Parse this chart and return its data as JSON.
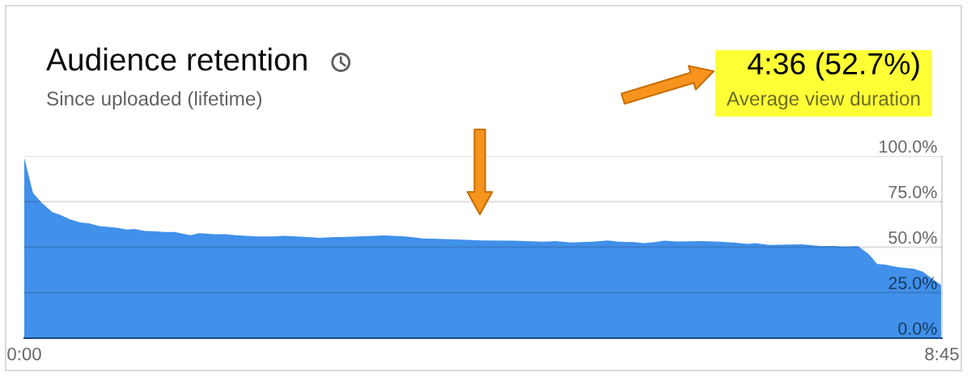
{
  "chart_data": {
    "type": "area",
    "title": "Audience retention",
    "subtitle": "Since uploaded (lifetime)",
    "annotations": [
      "4:36 (52.7%)",
      "Average view duration"
    ],
    "x": [
      0,
      5,
      10,
      16,
      21,
      26,
      32,
      37,
      43,
      53,
      59,
      63,
      69,
      74,
      80,
      86,
      95,
      100,
      109,
      115,
      121,
      133,
      142,
      149,
      160,
      169,
      175,
      185,
      206,
      218,
      228,
      245,
      262,
      280,
      297,
      304,
      313,
      325,
      334,
      340,
      349,
      354,
      360,
      366,
      374,
      387,
      398,
      407,
      414,
      418,
      426,
      445,
      456,
      463,
      469,
      477,
      483,
      488,
      493,
      500,
      509,
      514,
      519,
      525
    ],
    "values": [
      99,
      79.8,
      74.3,
      69.3,
      67.5,
      65.3,
      63.5,
      63.1,
      61.6,
      60.7,
      59.7,
      60.0,
      58.9,
      58.8,
      58.3,
      58.3,
      56.5,
      57.7,
      57.1,
      57.1,
      56.5,
      55.9,
      55.9,
      56.2,
      55.7,
      55.1,
      55.4,
      55.7,
      56.4,
      55.9,
      54.8,
      54.3,
      53.7,
      53.6,
      53.0,
      53.3,
      52.5,
      53.0,
      53.7,
      53.0,
      52.8,
      52.2,
      52.7,
      53.6,
      53.1,
      53.3,
      53.0,
      52.4,
      51.8,
      52.2,
      51.2,
      51.5,
      50.6,
      50.7,
      50.3,
      50.6,
      46.3,
      40.8,
      40.3,
      39.0,
      38.1,
      36.6,
      33.0,
      28.9
    ],
    "color": "#4190ea",
    "xlim": [
      0,
      525
    ],
    "xticks": [
      {
        "value": 0,
        "label": "0:00"
      },
      {
        "value": 525,
        "label": "8:45"
      }
    ],
    "ylim": [
      0,
      100
    ],
    "yticks": [
      {
        "value": 0,
        "label": "0.0%"
      },
      {
        "value": 25,
        "label": "25.0%"
      },
      {
        "value": 50,
        "label": "50.0%"
      },
      {
        "value": 75,
        "label": "75.0%"
      },
      {
        "value": 100,
        "label": "100.0%"
      }
    ],
    "grid": "y"
  }
}
